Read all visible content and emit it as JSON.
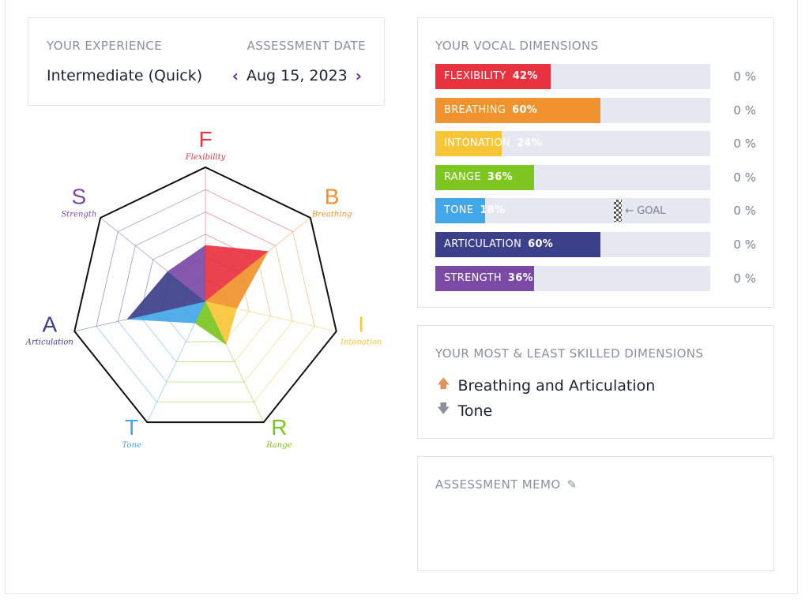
{
  "experience": {
    "heading": "YOUR EXPERIENCE",
    "value": "Intermediate (Quick)"
  },
  "assessment": {
    "heading": "ASSESSMENT DATE",
    "date": "Aug 15, 2023",
    "prev_icon": "chevron-left-icon",
    "next_icon": "chevron-right-icon"
  },
  "vocal_dimensions": {
    "heading": "YOUR VOCAL DIMENSIONS",
    "goal_label": "← GOAL",
    "goal_marker_dimension": "TONE",
    "goal_value": 0.65,
    "items": [
      {
        "name": "FLEXIBILITY",
        "pct": "42%",
        "value": 0.42,
        "color": "#e8323f",
        "right": "0 %"
      },
      {
        "name": "BREATHING",
        "pct": "60%",
        "value": 0.6,
        "color": "#f0922d",
        "right": "0 %"
      },
      {
        "name": "INTONATION",
        "pct": "24%",
        "value": 0.24,
        "color": "#f7c536",
        "right": "0 %"
      },
      {
        "name": "RANGE",
        "pct": "36%",
        "value": 0.36,
        "color": "#7cc61f",
        "right": "0 %"
      },
      {
        "name": "TONE",
        "pct": "18%",
        "value": 0.18,
        "color": "#42a7e6",
        "right": "0 %"
      },
      {
        "name": "ARTICULATION",
        "pct": "60%",
        "value": 0.6,
        "color": "#3c3f8a",
        "right": "0 %"
      },
      {
        "name": "STRENGTH",
        "pct": "36%",
        "value": 0.36,
        "color": "#7b4aa6",
        "right": "0 %"
      }
    ]
  },
  "skills": {
    "heading": "YOUR MOST & LEAST SKILLED DIMENSIONS",
    "most": "Breathing and Articulation",
    "least": "Tone",
    "most_icon": "arrow-up-icon",
    "least_icon": "arrow-down-icon"
  },
  "memo": {
    "heading": "ASSESSMENT MEMO",
    "edit_icon": "pencil-icon"
  },
  "radar": {
    "axes": [
      {
        "letter": "F",
        "label": "Flexibility",
        "value": 0.42,
        "color": "#e8323f"
      },
      {
        "letter": "B",
        "label": "Breathing",
        "value": 0.6,
        "color": "#f0922d"
      },
      {
        "letter": "I",
        "label": "Intonation",
        "value": 0.24,
        "color": "#f7c536"
      },
      {
        "letter": "R",
        "label": "Range",
        "value": 0.36,
        "color": "#7cc61f"
      },
      {
        "letter": "T",
        "label": "Tone",
        "value": 0.18,
        "color": "#42a7e6"
      },
      {
        "letter": "A",
        "label": "Articulation",
        "value": 0.6,
        "color": "#3c3f8a"
      },
      {
        "letter": "S",
        "label": "Strength",
        "value": 0.36,
        "color": "#7b4aa6"
      }
    ]
  }
}
